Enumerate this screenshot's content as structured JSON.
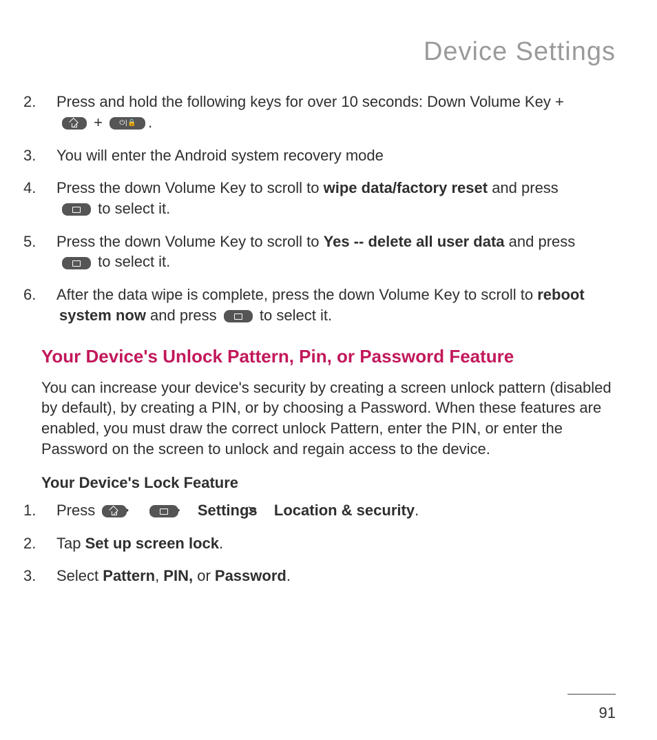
{
  "header": {
    "title": "Device Settings"
  },
  "steps_a": [
    {
      "n": "2.",
      "pre": "Press and hold the following keys for over 10 seconds: Down Volume Key +",
      "mid": " + ",
      "post": "."
    },
    {
      "n": "3.",
      "text": "You will enter the Android system recovery mode"
    },
    {
      "n": "4.",
      "pre": "Press the down Volume Key to scroll to ",
      "bold": "wipe data/factory reset",
      "mid": " and press ",
      "post": " to select it."
    },
    {
      "n": "5.",
      "pre": "Press the down Volume Key to scroll to ",
      "bold": "Yes -- delete all user data",
      "mid": " and press ",
      "post": " to select it."
    },
    {
      "n": "6.",
      "pre": "After the data wipe is complete, press the down Volume Key to scroll to ",
      "bold": "reboot system now",
      "mid": " and press ",
      "post": " to select it."
    }
  ],
  "section_title": "Your Device's Unlock Pattern, Pin, or Password Feature",
  "section_para": "You can increase your device's security by creating a screen unlock pattern (disabled by default), by creating a PIN, or by choosing a Password. When these features are enabled, you must draw the correct unlock Pattern, enter the PIN, or enter the Password on the screen to unlock and regain access to the device.",
  "sub_heading": "Your Device's Lock Feature",
  "steps_b": [
    {
      "n": "1.",
      "pre": "Press ",
      "sep": ">",
      "b1": "Settings",
      "b2": "Location & security",
      "end": "."
    },
    {
      "n": "2.",
      "pre": "Tap ",
      "bold": "Set up screen lock",
      "end": "."
    },
    {
      "n": "3.",
      "pre": "Select ",
      "b1": "Pattern",
      "c1": ", ",
      "b2": "PIN,",
      "c2": " or ",
      "b3": "Password",
      "end": "."
    }
  ],
  "page_number": "91",
  "colors": {
    "title_gray": "#9a9a9a",
    "accent": "#c2185b",
    "text": "#2f2f2f",
    "icon_bg": "#555555",
    "background": "#ffffff"
  },
  "typography": {
    "body_fontsize_pt": 16,
    "title_fontsize_pt": 28,
    "section_fontsize_pt": 20,
    "font_family": "Helvetica Neue / Optima-like sans-serif"
  }
}
